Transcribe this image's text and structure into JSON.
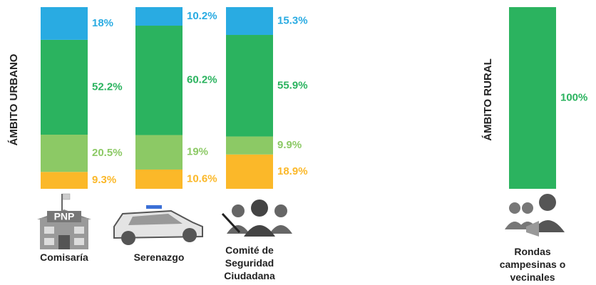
{
  "chart_data": [
    {
      "type": "bar",
      "stacked": true,
      "y_label": "ÁMBITO URBANO",
      "categories": [
        "Comisaría",
        "Serenazgo",
        "Comité de Seguridad Ciudadana"
      ],
      "ylim": [
        0,
        100
      ],
      "annotations": [
        "PNP"
      ],
      "series": [
        {
          "color": "#fbb829",
          "values": [
            9.3,
            10.6,
            18.9
          ],
          "value_labels": [
            "9.3%",
            "10.6%",
            "18.9%"
          ]
        },
        {
          "color": "#8cc965",
          "values": [
            20.5,
            19,
            9.9
          ],
          "value_labels": [
            "20.5%",
            "19%",
            "9.9%"
          ]
        },
        {
          "color": "#2bb35f",
          "values": [
            52.2,
            60.2,
            55.9
          ],
          "value_labels": [
            "52.2%",
            "60.2%",
            "55.9%"
          ]
        },
        {
          "color": "#29abe2",
          "values": [
            18,
            10.2,
            15.3
          ],
          "value_labels": [
            "18%",
            "10.2%",
            "15.3%"
          ]
        }
      ]
    },
    {
      "type": "bar",
      "stacked": true,
      "y_label": "ÁMBITO RURAL",
      "categories": [
        "Rondas campesinas o vecinales"
      ],
      "ylim": [
        0,
        100
      ],
      "series": [
        {
          "color": "#2bb35f",
          "values": [
            100
          ],
          "value_labels": [
            "100%"
          ]
        }
      ]
    }
  ]
}
